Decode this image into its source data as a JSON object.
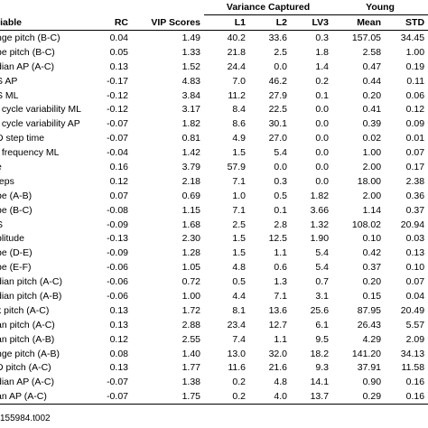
{
  "header": {
    "variable": "riable",
    "rc": "RC",
    "vip": "VIP Scores",
    "variance_captured": "Variance Captured",
    "l1": "L1",
    "l2": "L2",
    "lv3": "LV3",
    "young": "Young",
    "mean": "Mean",
    "std": "STD"
  },
  "table": {
    "rows": [
      [
        "nge pitch (B-C)",
        "0.04",
        "1.49",
        "40.2",
        "33.6",
        "0.3",
        "157.05",
        "34.45"
      ],
      [
        "pe pitch (B-C)",
        "0.05",
        "1.33",
        "21.8",
        "2.5",
        "1.8",
        "2.58",
        "1.00"
      ],
      [
        "dian AP (A-C)",
        "0.13",
        "1.52",
        "24.4",
        "0.0",
        "1.4",
        "0.47",
        "0.19"
      ],
      [
        "S AP",
        "-0.17",
        "4.83",
        "7.0",
        "46.2",
        "0.2",
        "0.44",
        "0.11"
      ],
      [
        "S ML",
        "-0.12",
        "3.84",
        "11.2",
        "27.9",
        "0.1",
        "0.20",
        "0.06"
      ],
      [
        "t cycle variability ML",
        "-0.12",
        "3.17",
        "8.4",
        "22.5",
        "0.0",
        "0.41",
        "0.12"
      ],
      [
        "t cycle variability AP",
        "-0.07",
        "1.82",
        "8.6",
        "30.1",
        "0.0",
        "0.39",
        "0.09"
      ],
      [
        "D step time",
        "-0.07",
        "0.81",
        "4.9",
        "27.0",
        "0.0",
        "0.02",
        "0.01"
      ],
      [
        "t frequency ML",
        "-0.04",
        "1.42",
        "1.5",
        "5.4",
        "0.0",
        "1.00",
        "0.07"
      ],
      [
        "e",
        "0.16",
        "3.79",
        "57.9",
        "0.0",
        "0.0",
        "2.00",
        "0.17"
      ],
      [
        "teps",
        "0.12",
        "2.18",
        "7.1",
        "0.3",
        "0.0",
        "18.00",
        "2.38"
      ],
      [
        "pe (A-B)",
        "0.07",
        "0.69",
        "1.0",
        "0.5",
        "1.82",
        "2.00",
        "0.36"
      ],
      [
        "pe (B-C)",
        "-0.08",
        "1.15",
        "7.1",
        "0.1",
        "3.66",
        "1.14",
        "0.37"
      ],
      [
        "S",
        "-0.09",
        "1.68",
        "2.5",
        "2.8",
        "1.32",
        "108.02",
        "20.94"
      ],
      [
        "plitude",
        "-0.13",
        "2.30",
        "1.5",
        "12.5",
        "1.90",
        "0.10",
        "0.03"
      ],
      [
        "pe (D-E)",
        "-0.09",
        "1.28",
        "1.5",
        "1.1",
        "5.4",
        "0.42",
        "0.13"
      ],
      [
        "pe (E-F)",
        "-0.06",
        "1.05",
        "4.8",
        "0.6",
        "5.4",
        "0.37",
        "0.10"
      ],
      [
        "dian pitch (A-C)",
        "-0.06",
        "0.72",
        "0.5",
        "1.3",
        "0.7",
        "0.20",
        "0.07"
      ],
      [
        "dian pitch (A-B)",
        "-0.06",
        "1.00",
        "4.4",
        "7.1",
        "3.1",
        "0.15",
        "0.04"
      ],
      [
        "k pitch (A-C)",
        "0.13",
        "1.72",
        "8.1",
        "13.6",
        "25.6",
        "87.95",
        "20.49"
      ],
      [
        "an pitch (A-C)",
        "0.13",
        "2.88",
        "23.4",
        "12.7",
        "6.1",
        "26.43",
        "5.57"
      ],
      [
        "an pitch (A-B)",
        "0.12",
        "2.55",
        "7.4",
        "1.1",
        "9.5",
        "4.29",
        "2.09"
      ],
      [
        "nge pitch (A-B)",
        "0.08",
        "1.40",
        "13.0",
        "32.0",
        "18.2",
        "141.20",
        "34.13"
      ],
      [
        "D pitch (A-C)",
        "0.13",
        "1.77",
        "11.6",
        "21.6",
        "9.3",
        "37.91",
        "11.58"
      ],
      [
        "dian AP (A-C)",
        "-0.07",
        "1.38",
        "0.2",
        "4.8",
        "14.1",
        "0.90",
        "0.16"
      ],
      [
        "an AP (A-C)",
        "-0.07",
        "1.75",
        "0.2",
        "4.0",
        "13.7",
        "0.29",
        "0.16"
      ]
    ]
  },
  "footer": "155984.t002"
}
